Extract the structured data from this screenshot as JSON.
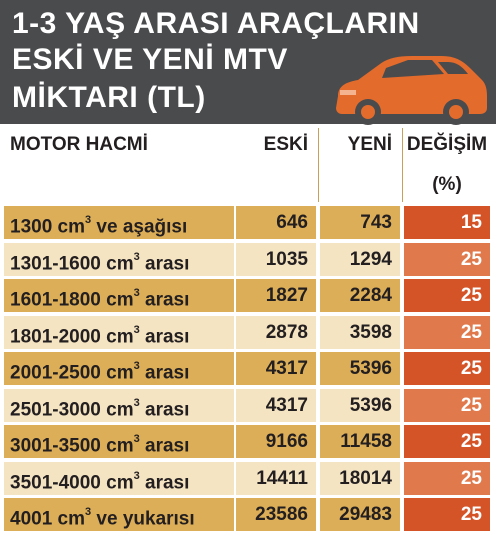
{
  "title_lines": [
    "1-3 YAŞ ARASI ARAÇLARIN",
    "ESKİ VE YENİ MTV",
    "MİKTARI (TL)"
  ],
  "colors": {
    "header_bg": "#4a4b4d",
    "car": "#e36b2c",
    "row_dark": "#dcae57",
    "row_light": "#f5e4c2",
    "change_dark": "#d45327",
    "change_light": "#e07a4c"
  },
  "chart_data": {
    "type": "table",
    "columns": [
      "MOTOR HACMİ",
      "ESKİ",
      "YENİ",
      "DEĞİŞİM",
      "(%)"
    ],
    "rows": [
      {
        "label": "1300 cm",
        "suffix": " ve aşağısı",
        "eski": "646",
        "yeni": "743",
        "degisim": "15"
      },
      {
        "label": "1301-1600 cm",
        "suffix": " arası",
        "eski": "1035",
        "yeni": "1294",
        "degisim": "25"
      },
      {
        "label": "1601-1800 cm",
        "suffix": " arası",
        "eski": "1827",
        "yeni": "2284",
        "degisim": "25"
      },
      {
        "label": "1801-2000 cm",
        "suffix": " arası",
        "eski": "2878",
        "yeni": "3598",
        "degisim": "25"
      },
      {
        "label": "2001-2500 cm",
        "suffix": " arası",
        "eski": "4317",
        "yeni": "5396",
        "degisim": "25"
      },
      {
        "label": "2501-3000 cm",
        "suffix": " arası",
        "eski": "4317",
        "yeni": "5396",
        "degisim": "25"
      },
      {
        "label": "3001-3500 cm",
        "suffix": " arası",
        "eski": "9166",
        "yeni": "11458",
        "degisim": "25"
      },
      {
        "label": "3501-4000 cm",
        "suffix": " arası",
        "eski": "14411",
        "yeni": "18014",
        "degisim": "25"
      },
      {
        "label": "4001 cm",
        "suffix": " ve yukarısı",
        "eski": "23586",
        "yeni": "29483",
        "degisim": "25"
      }
    ],
    "superscript": "3"
  }
}
